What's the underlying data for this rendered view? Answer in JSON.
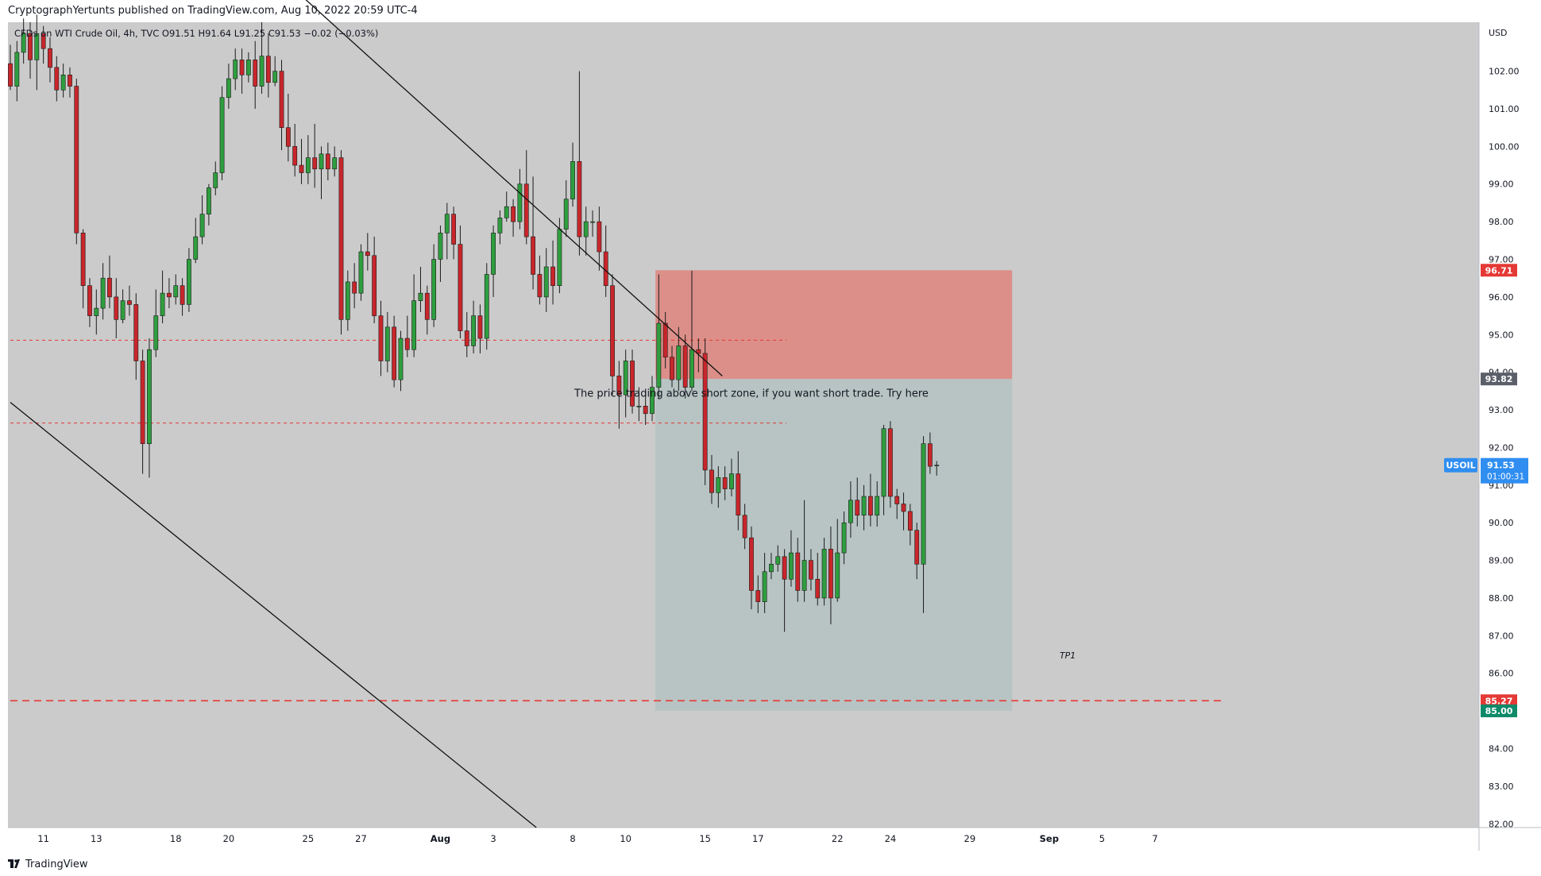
{
  "header": {
    "published_line": "CryptographYertunts published on TradingView.com, Aug 10, 2022 20:59 UTC-4"
  },
  "footer": {
    "brand": "TradingView"
  },
  "colors": {
    "background": "#cbcbcb",
    "up_candle": "#2e9e3e",
    "down_candle": "#c8262b",
    "stop_zone": "#dc8f89",
    "target_zone": "#b7c4c3",
    "price_label_blue": "#2f8ef0",
    "red_label": "#e53935",
    "teal_label": "#0d8a6a",
    "gray_label": "#5b5f69"
  },
  "chart_data": {
    "type": "candlestick",
    "symbol_line": "CFDs on WTI Crude Oil, 4h, TVC  O91.51  H91.64  L91.25  C91.53  −0.02 (−0.03%)",
    "currency": "USD",
    "y_ticks": [
      "82.00",
      "83.00",
      "84.00",
      "85.00",
      "86.00",
      "87.00",
      "88.00",
      "89.00",
      "90.00",
      "91.00",
      "92.00",
      "93.00",
      "94.00",
      "95.00",
      "96.00",
      "97.00",
      "98.00",
      "99.00",
      "100.00",
      "101.00",
      "102.00"
    ],
    "ylim": [
      81.9,
      103.3
    ],
    "x_ticks": [
      {
        "label": "11",
        "slot": 5
      },
      {
        "label": "13",
        "slot": 13
      },
      {
        "label": "18",
        "slot": 25
      },
      {
        "label": "20",
        "slot": 33
      },
      {
        "label": "25",
        "slot": 45
      },
      {
        "label": "27",
        "slot": 53
      },
      {
        "label": "Aug",
        "slot": 65
      },
      {
        "label": "3",
        "slot": 73
      },
      {
        "label": "8",
        "slot": 85
      },
      {
        "label": "10",
        "slot": 93
      },
      {
        "label": "15",
        "slot": 105
      },
      {
        "label": "17",
        "slot": 113
      },
      {
        "label": "22",
        "slot": 125
      },
      {
        "label": "24",
        "slot": 133
      },
      {
        "label": "29",
        "slot": 145
      },
      {
        "label": "Sep",
        "slot": 157
      },
      {
        "label": "5",
        "slot": 165
      },
      {
        "label": "7",
        "slot": 173
      }
    ],
    "candles": [
      [
        102.2,
        101.6,
        102.7,
        101.5
      ],
      [
        101.6,
        102.5,
        102.8,
        101.2
      ],
      [
        102.5,
        103.0,
        103.4,
        102.2
      ],
      [
        103.0,
        102.3,
        103.3,
        101.8
      ],
      [
        102.3,
        103.0,
        103.5,
        101.5
      ],
      [
        103.0,
        102.6,
        103.2,
        102.2
      ],
      [
        102.6,
        102.1,
        102.9,
        101.7
      ],
      [
        102.1,
        101.5,
        102.4,
        101.2
      ],
      [
        101.5,
        101.9,
        102.2,
        101.3
      ],
      [
        101.9,
        101.6,
        102.1,
        101.3
      ],
      [
        101.6,
        97.7,
        101.8,
        97.4
      ],
      [
        97.7,
        96.3,
        97.8,
        95.7
      ],
      [
        96.3,
        95.5,
        96.5,
        95.2
      ],
      [
        95.5,
        95.7,
        96.2,
        95.0
      ],
      [
        95.7,
        96.5,
        96.9,
        95.4
      ],
      [
        96.5,
        96.0,
        97.1,
        95.7
      ],
      [
        96.0,
        95.4,
        96.5,
        94.9
      ],
      [
        95.4,
        95.9,
        96.2,
        95.3
      ],
      [
        95.9,
        95.8,
        96.3,
        95.5
      ],
      [
        95.8,
        94.3,
        96.1,
        93.8
      ],
      [
        94.3,
        92.1,
        94.6,
        91.3
      ],
      [
        92.1,
        94.6,
        94.9,
        91.2
      ],
      [
        94.6,
        95.5,
        96.2,
        94.4
      ],
      [
        95.5,
        96.1,
        96.7,
        95.3
      ],
      [
        96.1,
        96.0,
        96.5,
        95.7
      ],
      [
        96.0,
        96.3,
        96.6,
        95.8
      ],
      [
        96.3,
        95.8,
        96.5,
        95.5
      ],
      [
        95.8,
        97.0,
        97.3,
        95.6
      ],
      [
        97.0,
        97.6,
        98.1,
        96.9
      ],
      [
        97.6,
        98.2,
        98.7,
        97.4
      ],
      [
        98.2,
        98.9,
        99.0,
        97.9
      ],
      [
        98.9,
        99.3,
        99.6,
        98.7
      ],
      [
        99.3,
        101.3,
        101.6,
        99.1
      ],
      [
        101.3,
        101.8,
        102.2,
        101.0
      ],
      [
        101.8,
        102.3,
        102.6,
        101.5
      ],
      [
        102.3,
        101.9,
        102.6,
        101.4
      ],
      [
        101.9,
        102.3,
        102.5,
        101.7
      ],
      [
        102.3,
        101.6,
        102.8,
        101.0
      ],
      [
        101.6,
        102.4,
        103.3,
        101.4
      ],
      [
        102.4,
        101.7,
        103.0,
        101.3
      ],
      [
        101.7,
        102.0,
        102.4,
        101.6
      ],
      [
        102.0,
        100.5,
        102.3,
        99.9
      ],
      [
        100.5,
        100.0,
        101.4,
        99.6
      ],
      [
        100.0,
        99.5,
        100.6,
        99.2
      ],
      [
        99.5,
        99.3,
        100.2,
        99.0
      ],
      [
        99.3,
        99.7,
        100.3,
        99.0
      ],
      [
        99.7,
        99.4,
        100.6,
        98.9
      ],
      [
        99.4,
        99.8,
        100.0,
        98.6
      ],
      [
        99.8,
        99.4,
        100.1,
        99.1
      ],
      [
        99.4,
        99.7,
        100.0,
        99.2
      ],
      [
        99.7,
        95.4,
        99.9,
        95.0
      ],
      [
        95.4,
        96.4,
        96.7,
        95.1
      ],
      [
        96.4,
        96.1,
        96.9,
        95.7
      ],
      [
        96.1,
        97.2,
        97.4,
        95.9
      ],
      [
        97.2,
        97.1,
        97.7,
        96.7
      ],
      [
        97.1,
        95.5,
        97.6,
        95.3
      ],
      [
        95.5,
        94.3,
        95.9,
        93.9
      ],
      [
        94.3,
        95.2,
        95.6,
        94.0
      ],
      [
        95.2,
        93.8,
        95.5,
        93.6
      ],
      [
        93.8,
        94.9,
        95.1,
        93.5
      ],
      [
        94.9,
        94.6,
        95.5,
        94.4
      ],
      [
        94.6,
        95.9,
        96.6,
        94.4
      ],
      [
        95.9,
        96.1,
        96.8,
        95.6
      ],
      [
        96.1,
        95.4,
        96.3,
        95.0
      ],
      [
        95.4,
        97.0,
        97.4,
        95.2
      ],
      [
        97.0,
        97.7,
        97.9,
        96.4
      ],
      [
        97.7,
        98.2,
        98.5,
        97.0
      ],
      [
        98.2,
        97.4,
        98.4,
        97.0
      ],
      [
        97.4,
        95.1,
        97.9,
        94.9
      ],
      [
        95.1,
        94.7,
        95.6,
        94.4
      ],
      [
        94.7,
        95.5,
        95.9,
        94.5
      ],
      [
        95.5,
        94.9,
        95.8,
        94.5
      ],
      [
        94.9,
        96.6,
        96.9,
        94.6
      ],
      [
        96.6,
        97.7,
        97.9,
        96.0
      ],
      [
        97.7,
        98.1,
        98.3,
        97.4
      ],
      [
        98.1,
        98.4,
        98.8,
        98.0
      ],
      [
        98.4,
        98.0,
        98.6,
        97.6
      ],
      [
        98.0,
        99.0,
        99.4,
        97.8
      ],
      [
        99.0,
        97.6,
        99.9,
        97.4
      ],
      [
        97.6,
        96.6,
        99.2,
        96.2
      ],
      [
        96.6,
        96.0,
        97.1,
        95.8
      ],
      [
        96.0,
        96.8,
        97.3,
        95.6
      ],
      [
        96.8,
        96.3,
        97.5,
        95.8
      ],
      [
        96.3,
        97.8,
        98.1,
        96.1
      ],
      [
        97.8,
        98.6,
        99.1,
        97.6
      ],
      [
        98.6,
        99.6,
        100.1,
        98.4
      ],
      [
        99.6,
        97.6,
        102.0,
        97.1
      ],
      [
        97.6,
        98.0,
        98.4,
        97.1
      ],
      [
        98.0,
        98.0,
        98.3,
        97.6
      ],
      [
        98.0,
        97.2,
        98.4,
        96.7
      ],
      [
        97.2,
        96.3,
        97.9,
        96.0
      ],
      [
        96.3,
        93.9,
        96.6,
        93.4
      ],
      [
        93.9,
        93.4,
        94.3,
        92.5
      ],
      [
        93.4,
        94.3,
        94.6,
        92.8
      ],
      [
        94.3,
        93.1,
        94.6,
        92.9
      ],
      [
        93.1,
        93.1,
        93.6,
        92.7
      ],
      [
        93.1,
        92.9,
        93.5,
        92.6
      ],
      [
        92.9,
        93.6,
        93.9,
        92.7
      ],
      [
        93.6,
        95.3,
        96.6,
        93.3
      ],
      [
        95.3,
        94.4,
        95.6,
        94.1
      ],
      [
        94.4,
        93.8,
        94.7,
        93.6
      ],
      [
        93.8,
        94.7,
        95.2,
        93.5
      ],
      [
        94.7,
        93.6,
        95.0,
        93.3
      ],
      [
        93.6,
        94.6,
        96.7,
        93.5
      ],
      [
        94.6,
        94.5,
        94.9,
        94.0
      ],
      [
        94.5,
        91.4,
        94.9,
        91.0
      ],
      [
        91.4,
        90.8,
        91.8,
        90.5
      ],
      [
        90.8,
        91.2,
        91.5,
        90.4
      ],
      [
        91.2,
        90.9,
        91.5,
        90.6
      ],
      [
        90.9,
        91.3,
        91.7,
        90.7
      ],
      [
        91.3,
        90.2,
        91.9,
        89.8
      ],
      [
        90.2,
        89.6,
        90.5,
        89.3
      ],
      [
        89.6,
        88.2,
        89.9,
        87.7
      ],
      [
        88.2,
        87.9,
        88.6,
        87.6
      ],
      [
        87.9,
        88.7,
        89.2,
        87.6
      ],
      [
        88.7,
        88.9,
        89.2,
        88.5
      ],
      [
        88.9,
        89.1,
        89.4,
        88.7
      ],
      [
        89.1,
        88.5,
        89.3,
        87.1
      ],
      [
        88.5,
        89.2,
        89.8,
        88.3
      ],
      [
        89.2,
        88.2,
        89.6,
        87.9
      ],
      [
        88.2,
        89.0,
        90.6,
        87.9
      ],
      [
        89.0,
        88.5,
        89.3,
        88.2
      ],
      [
        88.5,
        88.0,
        89.2,
        87.8
      ],
      [
        88.0,
        89.3,
        89.6,
        87.8
      ],
      [
        89.3,
        88.0,
        89.9,
        87.3
      ],
      [
        88.0,
        89.2,
        90.1,
        87.9
      ],
      [
        89.2,
        90.0,
        90.3,
        88.9
      ],
      [
        90.0,
        90.6,
        91.1,
        89.6
      ],
      [
        90.6,
        90.2,
        91.2,
        89.9
      ],
      [
        90.2,
        90.7,
        91.0,
        89.8
      ],
      [
        90.7,
        90.2,
        91.3,
        89.9
      ],
      [
        90.2,
        90.7,
        91.1,
        89.9
      ],
      [
        90.7,
        92.5,
        92.6,
        90.2
      ],
      [
        92.5,
        90.7,
        92.7,
        90.4
      ],
      [
        90.7,
        90.5,
        90.9,
        90.1
      ],
      [
        90.5,
        90.3,
        90.8,
        89.8
      ],
      [
        90.3,
        89.8,
        90.5,
        89.4
      ],
      [
        89.8,
        88.9,
        90.0,
        88.5
      ],
      [
        88.9,
        92.1,
        92.3,
        87.6
      ],
      [
        92.1,
        91.5,
        92.4,
        91.3
      ],
      [
        91.51,
        91.53,
        91.64,
        91.25
      ]
    ],
    "trendlines": [
      {
        "name": "upper-channel-line",
        "from": {
          "slot": 41.5,
          "y": 104.4
        },
        "to": {
          "slot": 107.6,
          "y": 93.9
        }
      },
      {
        "name": "lower-channel-line",
        "from": {
          "slot": 0,
          "y": 93.2
        },
        "to": {
          "slot": 79.5,
          "y": 81.9
        }
      }
    ],
    "dashed_levels": [
      {
        "name": "dashed-level-94-85",
        "y": 94.85,
        "from_slot": 0,
        "to_slot": 117.3
      },
      {
        "name": "dashed-level-92-65",
        "y": 92.65,
        "from_slot": 0,
        "to_slot": 117.3
      },
      {
        "name": "dashed-level-85-27",
        "y": 85.27,
        "from_slot": 0,
        "to_slot": 183
      }
    ],
    "position_tool": {
      "from_slot": 97.5,
      "to_slot": 151.4,
      "stop": 96.71,
      "entry": 93.82,
      "target": 85.0
    },
    "annotations": [
      {
        "name": "note-short-zone",
        "text": "The price trading above short zone, if you want short trade. Try here",
        "slot": 112.0,
        "y": 93.35
      },
      {
        "name": "note-tp1",
        "text": "TP1",
        "slot": 159.8,
        "y": 86.4
      }
    ],
    "price_labels": [
      {
        "name": "label-stop-price",
        "value": "96.71",
        "y": 96.71,
        "color": "#e53935"
      },
      {
        "name": "label-entry-price",
        "value": "93.82",
        "y": 93.82,
        "color": "#5b5f69"
      },
      {
        "name": "label-level-price",
        "value": "85.27",
        "y": 85.27,
        "color": "#e53935"
      },
      {
        "name": "label-target-price",
        "value": "85.00",
        "y": 85.0,
        "color": "#0d8a6a"
      }
    ],
    "last_price": {
      "symbol": "USOIL",
      "value": "91.53",
      "countdown": "01:00:31",
      "y": 91.53
    }
  }
}
